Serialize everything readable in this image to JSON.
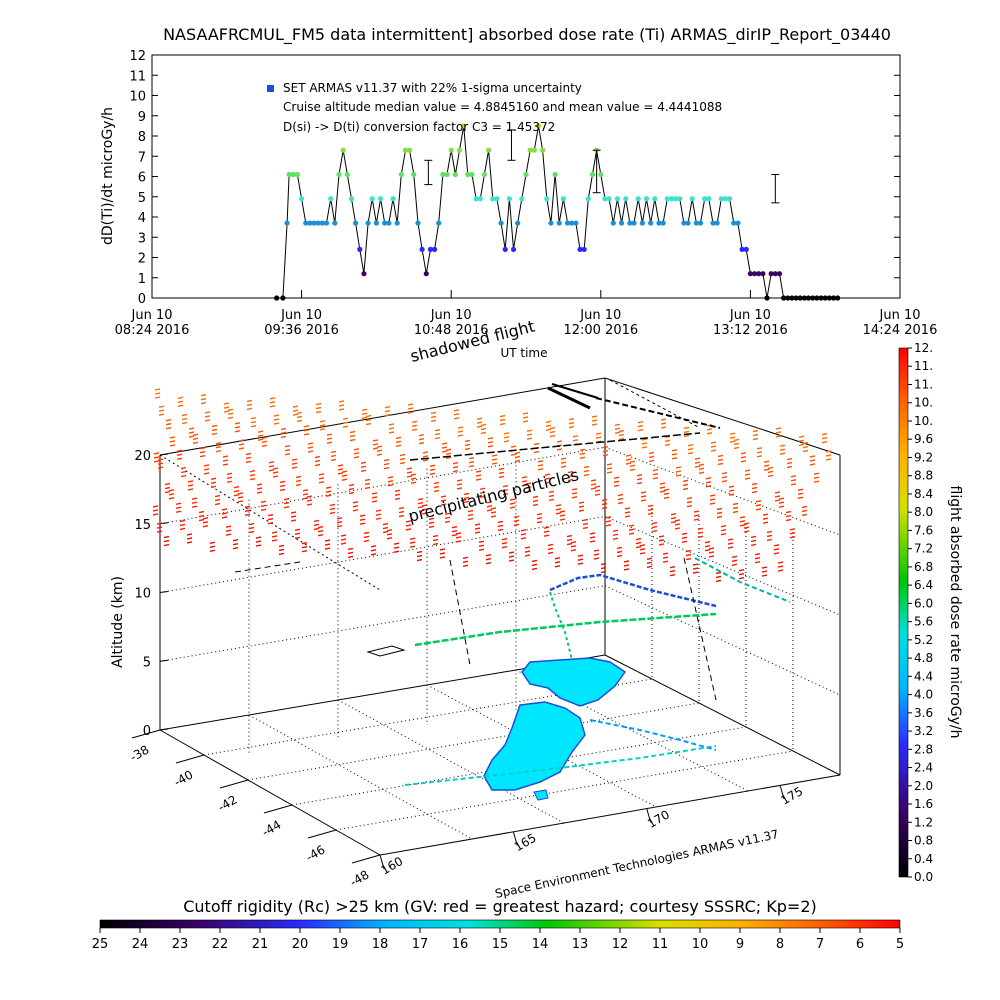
{
  "page": {
    "title": "NASAAFRCMUL_FM5 data intermittent] absorbed dose rate (Ti) ARMAS_dirIP_Report_03440",
    "footer_label": "Cutoff rigidity (Rc) >25 km (GV: red = greatest hazard; courtesy SSSRC; Kp=2)",
    "credit": "Space Environment Technologies ARMAS v11.37",
    "map_label_shadowed": "shadowed flight",
    "map_label_precip": "precipitating particles"
  },
  "chart_data": [
    {
      "type": "line",
      "ylabel": "dD(Ti)/dt microGy/h",
      "xlabel": "UT time",
      "ylim": [
        0,
        12
      ],
      "yticks": [
        "0",
        "1",
        "2",
        "3",
        "4",
        "5",
        "6",
        "7",
        "8",
        "9",
        "10",
        "11",
        "12"
      ],
      "xticks": [
        {
          "day": "Jun 10",
          "time": "08:24 2016"
        },
        {
          "day": "Jun 10",
          "time": "09:36 2016"
        },
        {
          "day": "Jun 10",
          "time": "10:48 2016"
        },
        {
          "day": "Jun 10",
          "time": "12:00 2016"
        },
        {
          "day": "Jun 10",
          "time": "13:12 2016"
        },
        {
          "day": "Jun 10",
          "time": "14:24 2016"
        }
      ],
      "xlim_minutes": [
        0,
        360
      ],
      "legend_entry": "SET ARMAS v11.37 with 22% 1-sigma uncertainty",
      "annotation_1": "Cruise altitude median value = 4.8845160 and mean value = 4.4441088",
      "annotation_2": "D(si) -> D(ti) conversion factor C3 = 1.45372",
      "x_minutes": [
        60,
        63,
        65,
        66,
        68,
        70,
        72,
        74,
        76,
        78,
        80,
        82,
        84,
        86,
        88,
        90,
        92,
        94,
        96,
        98,
        100,
        102,
        104,
        106,
        108,
        110,
        112,
        114,
        116,
        118,
        120,
        122,
        124,
        126,
        128,
        130,
        132,
        134,
        136,
        138,
        140,
        142,
        144,
        146,
        148,
        150,
        152,
        154,
        156,
        158,
        160,
        162,
        164,
        166,
        168,
        170,
        172,
        174,
        176,
        178,
        180,
        182,
        184,
        186,
        188,
        190,
        192,
        194,
        196,
        198,
        200,
        202,
        204,
        206,
        208,
        210,
        212,
        214,
        216,
        218,
        220,
        222,
        224,
        226,
        228,
        230,
        232,
        234,
        236,
        238,
        240,
        242,
        244,
        246,
        248,
        250,
        252,
        254,
        256,
        258,
        260,
        262,
        264,
        266,
        268,
        270,
        272,
        274,
        276,
        278,
        280,
        282,
        284,
        286,
        288,
        290,
        292,
        294,
        296,
        298,
        300,
        302,
        304,
        306,
        308,
        310,
        312,
        314,
        316,
        318,
        320,
        322,
        324,
        326,
        328,
        330
      ],
      "dose": [
        0,
        0,
        3.7,
        6.1,
        6.1,
        6.1,
        4.9,
        3.7,
        3.7,
        3.7,
        3.7,
        3.7,
        3.7,
        4.9,
        3.7,
        6.1,
        7.3,
        6.1,
        4.9,
        3.7,
        2.4,
        1.2,
        3.7,
        4.9,
        3.7,
        4.9,
        3.7,
        3.7,
        4.9,
        3.7,
        6.1,
        7.3,
        7.3,
        6.1,
        3.7,
        2.4,
        1.2,
        2.4,
        2.4,
        3.7,
        6.1,
        6.1,
        7.3,
        6.1,
        7.3,
        8.5,
        6.1,
        6.1,
        4.9,
        4.9,
        6.1,
        7.3,
        4.9,
        4.9,
        3.7,
        2.4,
        4.9,
        2.4,
        3.7,
        4.9,
        6.1,
        7.3,
        7.3,
        8.5,
        7.3,
        4.9,
        3.7,
        6.1,
        3.7,
        4.9,
        3.7,
        3.7,
        3.7,
        2.4,
        2.4,
        4.9,
        6.1,
        7.3,
        6.1,
        4.9,
        4.9,
        3.7,
        4.9,
        3.7,
        4.9,
        3.7,
        3.7,
        4.9,
        3.7,
        4.9,
        3.7,
        4.9,
        3.7,
        3.7,
        4.9,
        4.9,
        4.9,
        4.9,
        3.7,
        3.7,
        4.9,
        3.7,
        3.7,
        4.9,
        4.9,
        3.7,
        3.7,
        4.9,
        4.9,
        4.9,
        3.7,
        3.7,
        2.4,
        2.4,
        1.2,
        1.2,
        1.2,
        1.2,
        0,
        1.2,
        1.2,
        1.2,
        0,
        0,
        0,
        0,
        0,
        0,
        0,
        0,
        0,
        0,
        0,
        0,
        0,
        0
      ],
      "error_bars": [
        {
          "x_minutes": 133,
          "low": 5.6,
          "high": 6.8
        },
        {
          "x_minutes": 173,
          "low": 6.8,
          "high": 8.3
        },
        {
          "x_minutes": 214,
          "low": 5.2,
          "high": 7.3
        },
        {
          "x_minutes": 300,
          "low": 4.7,
          "high": 6.1
        }
      ]
    },
    {
      "type": "line",
      "ylabel": "Altitude (km)",
      "zticks": [
        "0",
        "5",
        "10",
        "15",
        "20"
      ],
      "lat_ticks": [
        "-38",
        "-40",
        "-42",
        "-44",
        "-46",
        "-48"
      ],
      "lon_ticks": [
        "160",
        "165",
        "170",
        "175"
      ],
      "colorbar_label": "flight absorbed dose rate microGy/h",
      "colorbar_ticks": [
        "0.0",
        "0.4",
        "0.8",
        "1.2",
        "1.6",
        "2.0",
        "2.4",
        "2.8",
        "3.2",
        "3.6",
        "4.0",
        "4.4",
        "4.8",
        "5.2",
        "5.6",
        "6.0",
        "6.4",
        "6.8",
        "7.2",
        "7.6",
        "8.0",
        "8.4",
        "8.8",
        "9.2",
        "9.6",
        "10.",
        "10.",
        "11.",
        "11.",
        "12."
      ],
      "rigidity_ticks": [
        "25",
        "24",
        "23",
        "22",
        "21",
        "20",
        "19",
        "18",
        "17",
        "16",
        "15",
        "14",
        "13",
        "12",
        "11",
        "10",
        "9",
        "8",
        "7",
        "6",
        "5"
      ],
      "colors": {
        "high": "#ff0000",
        "mid": "#00d060",
        "low": "#000000",
        "land": "#00e6ff"
      }
    }
  ]
}
